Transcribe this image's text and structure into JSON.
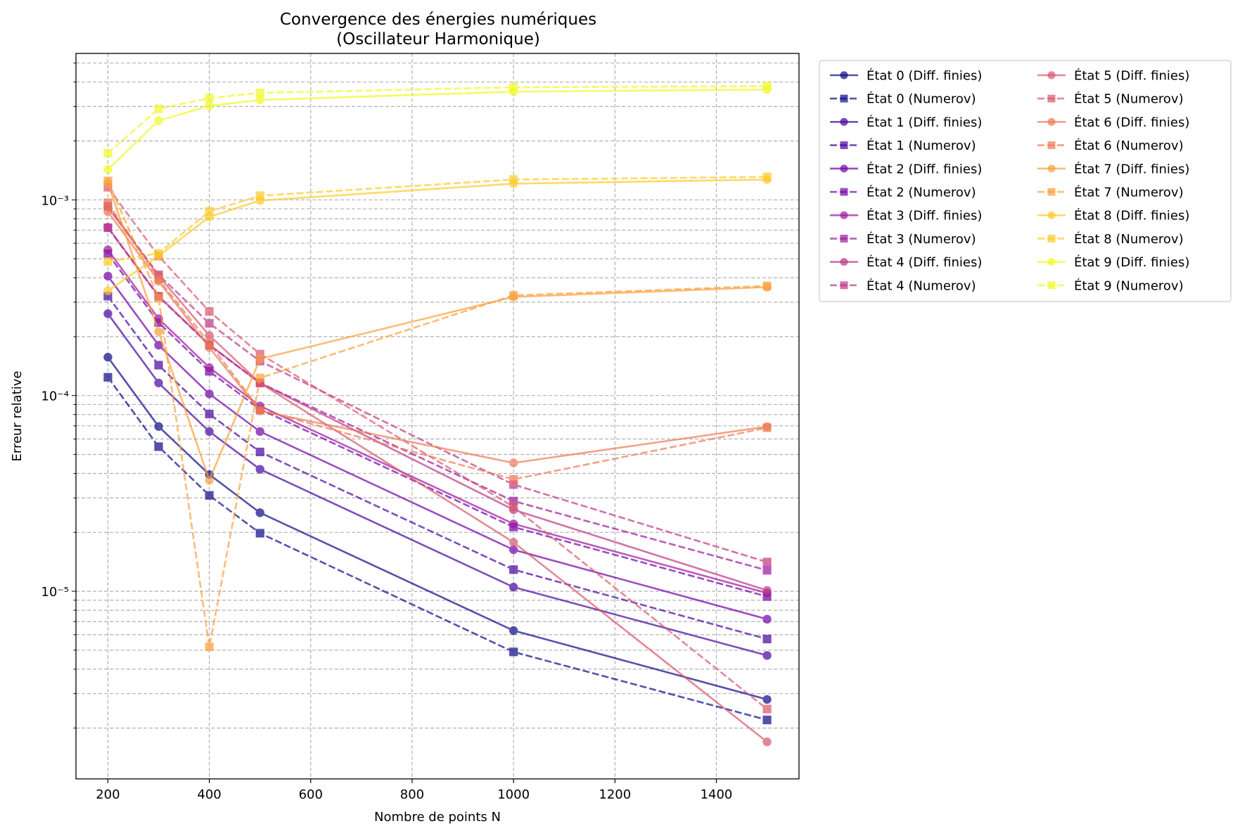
{
  "chart_data": {
    "type": "line",
    "title": "Convergence des énergies numériques",
    "subtitle": "(Oscillateur Harmonique)",
    "xlabel": "Nombre de points N",
    "ylabel": "Erreur relative",
    "yscale": "log",
    "xlim": [
      137,
      1563
    ],
    "ylim": [
      1.1e-06,
      0.0056
    ],
    "grid": true,
    "legend_position": "outside-top-right",
    "x_ticks": [
      200,
      400,
      600,
      800,
      1000,
      1200,
      1400
    ],
    "x_tick_labels": [
      "200",
      "400",
      "600",
      "800",
      "1000",
      "1200",
      "1400"
    ],
    "y_ticks": [
      1e-05,
      0.0001,
      0.001
    ],
    "y_tick_labels": [
      "10⁻⁵",
      "10⁻⁴",
      "10⁻³"
    ],
    "x": [
      200,
      300,
      400,
      500,
      1000,
      1500
    ],
    "series": [
      {
        "name": "État 0 (Diff. finies)",
        "style": "solid",
        "marker": "circle",
        "color": "#0d0887",
        "values": [
          0.000157,
          6.95e-05,
          3.95e-05,
          2.52e-05,
          6.3e-06,
          2.8e-06
        ]
      },
      {
        "name": "État 0 (Numerov)",
        "style": "dashed",
        "marker": "square",
        "color": "#0d0887",
        "values": [
          0.000124,
          5.48e-05,
          3.09e-05,
          1.98e-05,
          4.9e-06,
          2.2e-06
        ]
      },
      {
        "name": "État 1 (Diff. finies)",
        "style": "solid",
        "marker": "circle",
        "color": "#46039f",
        "values": [
          0.000262,
          0.000116,
          6.55e-05,
          4.2e-05,
          1.05e-05,
          4.7e-06
        ]
      },
      {
        "name": "État 1 (Numerov)",
        "style": "dashed",
        "marker": "square",
        "color": "#46039f",
        "values": [
          0.000322,
          0.000143,
          8.05e-05,
          5.15e-05,
          1.29e-05,
          5.7e-06
        ]
      },
      {
        "name": "État 2 (Diff. finies)",
        "style": "solid",
        "marker": "circle",
        "color": "#7201a8",
        "values": [
          0.000408,
          0.000181,
          0.000102,
          6.55e-05,
          1.63e-05,
          7.2e-06
        ]
      },
      {
        "name": "État 2 (Numerov)",
        "style": "dashed",
        "marker": "square",
        "color": "#7201a8",
        "values": [
          0.00053,
          0.000236,
          0.000133,
          8.51e-05,
          2.13e-05,
          9.4e-06
        ]
      },
      {
        "name": "État 3 (Diff. finies)",
        "style": "solid",
        "marker": "circle",
        "color": "#9c179e",
        "values": [
          0.000555,
          0.000247,
          0.000139,
          8.85e-05,
          2.21e-05,
          9.8e-06
        ]
      },
      {
        "name": "État 3 (Numerov)",
        "style": "dashed",
        "marker": "square",
        "color": "#9c179e",
        "values": [
          0.00072,
          0.000321,
          0.000181,
          0.000116,
          2.89e-05,
          1.28e-05
        ]
      },
      {
        "name": "État 4 (Diff. finies)",
        "style": "solid",
        "marker": "circle",
        "color": "#bd3786",
        "values": [
          0.000725,
          0.000322,
          0.000182,
          0.000116,
          2.61e-05,
          1.01e-05
        ]
      },
      {
        "name": "État 4 (Numerov)",
        "style": "dashed",
        "marker": "square",
        "color": "#bd3786",
        "values": [
          0.000929,
          0.000414,
          0.000234,
          0.00015,
          3.51e-05,
          1.41e-05
        ]
      },
      {
        "name": "État 5 (Diff. finies)",
        "style": "solid",
        "marker": "circle",
        "color": "#d8576b",
        "values": [
          0.000917,
          0.000409,
          0.000203,
          0.000116,
          1.78e-05,
          1.7e-06
        ]
      },
      {
        "name": "État 5 (Numerov)",
        "style": "dashed",
        "marker": "square",
        "color": "#d8576b",
        "values": [
          0.00116,
          0.000516,
          0.000269,
          0.000163,
          2.7e-05,
          2.5e-06
        ]
      },
      {
        "name": "État 6 (Diff. finies)",
        "style": "solid",
        "marker": "circle",
        "color": "#ed7953",
        "values": [
          0.00087,
          0.000384,
          0.000176,
          8.34e-05,
          4.53e-05,
          6.94e-05
        ]
      },
      {
        "name": "État 6 (Numerov)",
        "style": "dashed",
        "marker": "square",
        "color": "#ed7953",
        "values": [
          0.000967,
          0.000393,
          0.000185,
          8.46e-05,
          3.73e-05,
          6.85e-05
        ]
      },
      {
        "name": "État 7 (Diff. finies)",
        "style": "solid",
        "marker": "circle",
        "color": "#fb9f3a",
        "values": [
          0.00122,
          0.000212,
          3.69e-05,
          0.000154,
          0.000319,
          0.000358
        ]
      },
      {
        "name": "État 7 (Numerov)",
        "style": "dashed",
        "marker": "square",
        "color": "#fb9f3a",
        "values": [
          0.00125,
          0.000316,
          5.2e-06,
          0.000123,
          0.000325,
          0.000363
        ]
      },
      {
        "name": "État 8 (Diff. finies)",
        "style": "solid",
        "marker": "circle",
        "color": "#fdca26",
        "values": [
          0.000343,
          0.000517,
          0.000818,
          0.000992,
          0.00121,
          0.00127
        ]
      },
      {
        "name": "État 8 (Numerov)",
        "style": "dashed",
        "marker": "square",
        "color": "#fdca26",
        "values": [
          0.000484,
          0.000533,
          0.000874,
          0.00105,
          0.00127,
          0.00131
        ]
      },
      {
        "name": "État 9 (Diff. finies)",
        "style": "solid",
        "marker": "circle",
        "color": "#f0f921",
        "values": [
          0.00143,
          0.00254,
          0.00302,
          0.00324,
          0.00357,
          0.00366
        ]
      },
      {
        "name": "État 9 (Numerov)",
        "style": "dashed",
        "marker": "square",
        "color": "#f0f921",
        "values": [
          0.00173,
          0.00292,
          0.00331,
          0.00352,
          0.00376,
          0.00381
        ]
      }
    ]
  }
}
